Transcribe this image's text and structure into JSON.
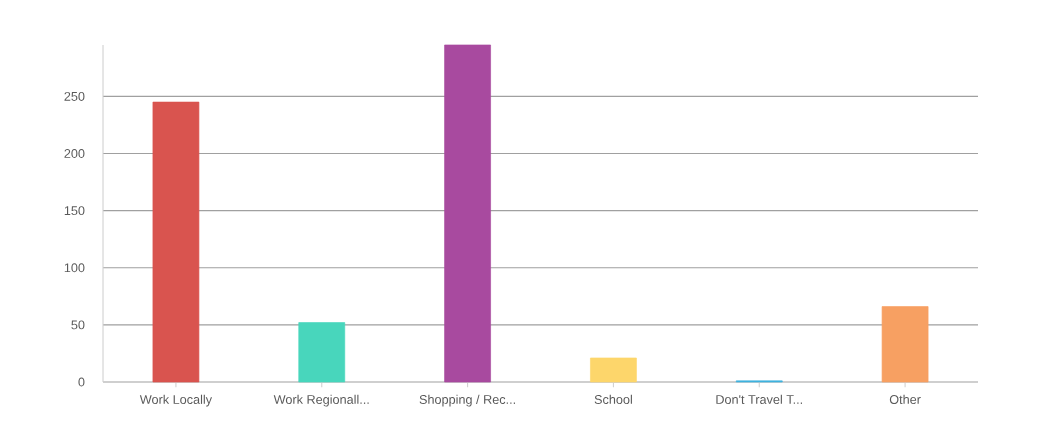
{
  "chart_data": {
    "type": "bar",
    "categories": [
      "Work Locally",
      "Work Regionall...",
      "Shopping / Rec...",
      "School",
      "Don't Travel T...",
      "Other"
    ],
    "values": [
      245,
      52,
      295,
      21,
      1,
      66
    ],
    "colors": [
      "#d9544f",
      "#48d6bc",
      "#a84a9f",
      "#fdd66b",
      "#3fb3df",
      "#f7a062"
    ],
    "ylim": [
      0,
      295
    ],
    "yticks": [
      0,
      50,
      100,
      150,
      200,
      250
    ],
    "grid": "y"
  }
}
